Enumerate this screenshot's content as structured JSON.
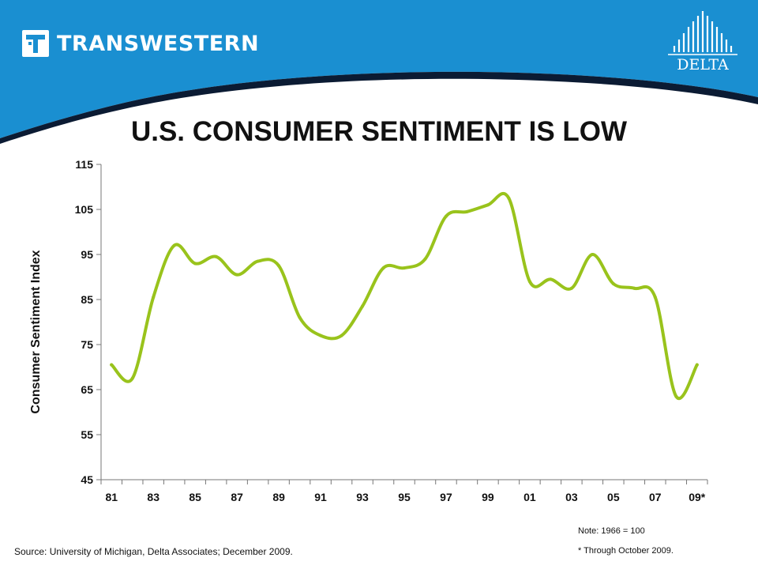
{
  "header": {
    "brand_text": "TRANSWESTERN",
    "partner_logo_text": "DELTA"
  },
  "title": "U.S. CONSUMER SENTIMENT IS LOW",
  "chart_data": {
    "type": "line",
    "title": "U.S. CONSUMER SENTIMENT IS LOW",
    "ylabel": "Consumer Sentiment Index",
    "xlabel": "",
    "ylim": [
      45,
      115
    ],
    "yticks": [
      45,
      55,
      65,
      75,
      85,
      95,
      105,
      115
    ],
    "xlim": [
      1981,
      2009
    ],
    "x_tick_labels": [
      {
        "x": 1981,
        "label": "81"
      },
      {
        "x": 1983,
        "label": "83"
      },
      {
        "x": 1985,
        "label": "85"
      },
      {
        "x": 1987,
        "label": "87"
      },
      {
        "x": 1989,
        "label": "89"
      },
      {
        "x": 1991,
        "label": "91"
      },
      {
        "x": 1993,
        "label": "93"
      },
      {
        "x": 1995,
        "label": "95"
      },
      {
        "x": 1997,
        "label": "97"
      },
      {
        "x": 1999,
        "label": "99"
      },
      {
        "x": 2001,
        "label": "01"
      },
      {
        "x": 2003,
        "label": "03"
      },
      {
        "x": 2005,
        "label": "05"
      },
      {
        "x": 2007,
        "label": "07"
      },
      {
        "x": 2009,
        "label": "09*"
      }
    ],
    "grid": false,
    "legend": "none",
    "series": [
      {
        "color": "#99c31c",
        "x": [
          1981,
          1982,
          1983,
          1984,
          1985,
          1986,
          1987,
          1988,
          1989,
          1990,
          1991,
          1992,
          1993,
          1994,
          1995,
          1996,
          1997,
          1998,
          1999,
          2000,
          2001,
          2002,
          2003,
          2004,
          2005,
          2006,
          2007,
          2008,
          2009
        ],
        "values": [
          70.5,
          67.5,
          85.5,
          97,
          93,
          94.5,
          90.5,
          93.5,
          92.5,
          81,
          77,
          77,
          83.5,
          92,
          92,
          94,
          103.5,
          104.5,
          106,
          107.5,
          89,
          89.5,
          87.5,
          95,
          88.5,
          87.5,
          85.5,
          63.5,
          70.5
        ]
      }
    ]
  },
  "notes": {
    "base": "Note:  1966 = 100",
    "through": "* Through October 2009."
  },
  "source": "Source: University of Michigan, Delta Associates; December 2009.",
  "colors": {
    "header_blue": "#1a8fd1",
    "header_dark": "#0b1b33",
    "line_green": "#99c31c"
  }
}
